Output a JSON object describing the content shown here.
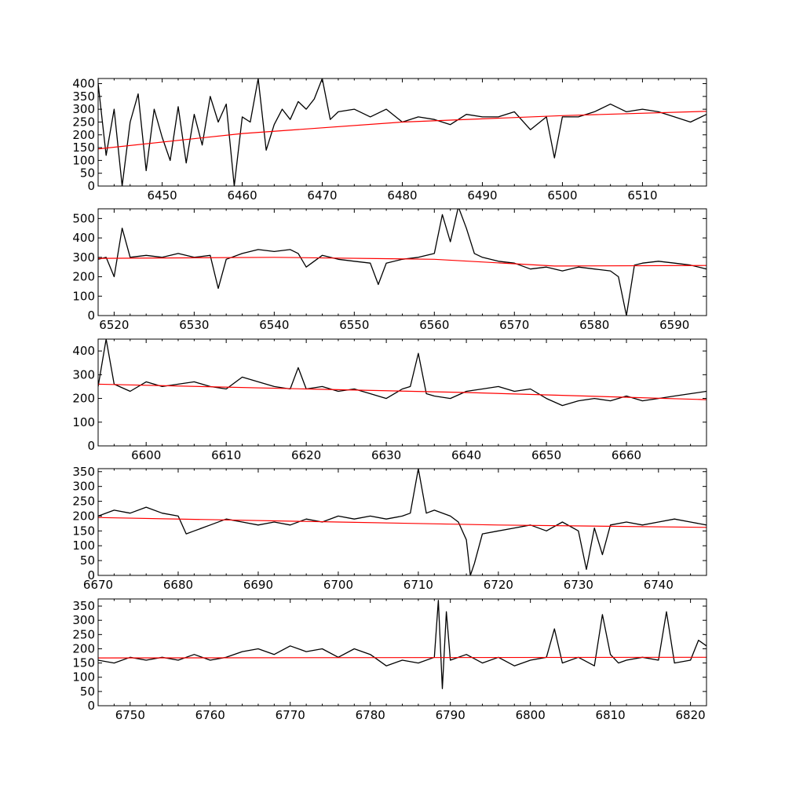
{
  "colors": {
    "spectrum": "#000000",
    "continuum": "#ff0000",
    "background": "#ffffff"
  },
  "chart_data": [
    {
      "type": "line",
      "xlim": [
        6442,
        6518
      ],
      "ylim": [
        0,
        420
      ],
      "xticks": [
        6450,
        6460,
        6470,
        6480,
        6490,
        6500,
        6510
      ],
      "yticks": [
        0,
        50,
        100,
        150,
        200,
        250,
        300,
        350,
        400
      ],
      "spectrum": {
        "x": [
          6442,
          6443,
          6444,
          6445,
          6446,
          6447,
          6448,
          6449,
          6450,
          6451,
          6452,
          6453,
          6454,
          6455,
          6456,
          6457,
          6458,
          6459,
          6460,
          6461,
          6462,
          6463,
          6464,
          6465,
          6466,
          6467,
          6468,
          6469,
          6470,
          6471,
          6472,
          6474,
          6476,
          6478,
          6480,
          6482,
          6484,
          6486,
          6488,
          6490,
          6492,
          6494,
          6496,
          6498,
          6499,
          6500,
          6502,
          6504,
          6506,
          6508,
          6510,
          6512,
          6514,
          6516,
          6518
        ],
        "y": [
          400,
          120,
          300,
          0,
          250,
          360,
          60,
          300,
          190,
          100,
          310,
          90,
          280,
          160,
          350,
          250,
          320,
          0,
          270,
          250,
          420,
          140,
          240,
          300,
          260,
          330,
          300,
          340,
          420,
          260,
          290,
          300,
          270,
          300,
          250,
          270,
          260,
          240,
          280,
          270,
          270,
          290,
          220,
          270,
          110,
          270,
          270,
          290,
          320,
          290,
          300,
          290,
          270,
          250,
          280
        ]
      },
      "continuum": {
        "x": [
          6442,
          6460,
          6480,
          6500,
          6518
        ],
        "y": [
          145,
          205,
          250,
          275,
          292
        ]
      }
    },
    {
      "type": "line",
      "xlim": [
        6518,
        6594
      ],
      "ylim": [
        0,
        550
      ],
      "xticks": [
        6520,
        6530,
        6540,
        6550,
        6560,
        6570,
        6580,
        6590
      ],
      "yticks": [
        0,
        100,
        200,
        300,
        400,
        500
      ],
      "spectrum": {
        "x": [
          6518,
          6519,
          6520,
          6521,
          6522,
          6524,
          6526,
          6528,
          6530,
          6532,
          6533,
          6534,
          6536,
          6538,
          6540,
          6542,
          6543,
          6544,
          6546,
          6548,
          6550,
          6552,
          6553,
          6554,
          6556,
          6558,
          6560,
          6561,
          6562,
          6563,
          6564,
          6565,
          6566,
          6568,
          6570,
          6572,
          6574,
          6576,
          6578,
          6580,
          6582,
          6583,
          6584,
          6585,
          6586,
          6588,
          6590,
          6592,
          6594
        ],
        "y": [
          290,
          300,
          200,
          450,
          300,
          310,
          300,
          320,
          300,
          310,
          140,
          290,
          320,
          340,
          330,
          340,
          320,
          250,
          310,
          290,
          280,
          270,
          160,
          270,
          290,
          300,
          320,
          520,
          380,
          560,
          450,
          320,
          300,
          280,
          270,
          240,
          250,
          230,
          250,
          240,
          230,
          200,
          0,
          260,
          270,
          280,
          270,
          260,
          240
        ]
      },
      "continuum": {
        "x": [
          6518,
          6540,
          6560,
          6575,
          6594
        ],
        "y": [
          295,
          300,
          290,
          255,
          258
        ]
      }
    },
    {
      "type": "line",
      "xlim": [
        6594,
        6670
      ],
      "ylim": [
        0,
        450
      ],
      "xticks": [
        6600,
        6610,
        6620,
        6630,
        6640,
        6650,
        6660
      ],
      "yticks": [
        0,
        100,
        200,
        300,
        400
      ],
      "spectrum": {
        "x": [
          6594,
          6595,
          6596,
          6598,
          6600,
          6602,
          6604,
          6606,
          6608,
          6610,
          6612,
          6614,
          6616,
          6618,
          6619,
          6620,
          6622,
          6624,
          6626,
          6628,
          6630,
          6632,
          6633,
          6634,
          6635,
          6636,
          6638,
          6640,
          6642,
          6644,
          6646,
          6648,
          6650,
          6652,
          6654,
          6656,
          6658,
          6660,
          6662,
          6664,
          6666,
          6668,
          6670
        ],
        "y": [
          250,
          450,
          260,
          230,
          270,
          250,
          260,
          270,
          250,
          240,
          290,
          270,
          250,
          240,
          330,
          240,
          250,
          230,
          240,
          220,
          200,
          240,
          250,
          390,
          220,
          210,
          200,
          230,
          240,
          250,
          230,
          240,
          200,
          170,
          190,
          200,
          190,
          210,
          190,
          200,
          210,
          220,
          230
        ]
      },
      "continuum": {
        "x": [
          6594,
          6620,
          6640,
          6670
        ],
        "y": [
          260,
          240,
          225,
          195
        ]
      }
    },
    {
      "type": "line",
      "xlim": [
        6670,
        6746
      ],
      "ylim": [
        0,
        360
      ],
      "xticks": [
        6670,
        6680,
        6690,
        6700,
        6710,
        6720,
        6730,
        6740
      ],
      "yticks": [
        0,
        50,
        100,
        150,
        200,
        250,
        300,
        350
      ],
      "spectrum": {
        "x": [
          6670,
          6672,
          6674,
          6676,
          6678,
          6680,
          6681,
          6682,
          6684,
          6686,
          6688,
          6690,
          6692,
          6694,
          6696,
          6698,
          6700,
          6702,
          6704,
          6706,
          6708,
          6709,
          6710,
          6711,
          6712,
          6714,
          6715,
          6716,
          6716.5,
          6717,
          6718,
          6720,
          6722,
          6724,
          6726,
          6728,
          6730,
          6731,
          6732,
          6733,
          6734,
          6736,
          6738,
          6740,
          6742,
          6744,
          6746
        ],
        "y": [
          200,
          220,
          210,
          230,
          210,
          200,
          140,
          150,
          170,
          190,
          180,
          170,
          180,
          170,
          190,
          180,
          200,
          190,
          200,
          190,
          200,
          210,
          360,
          210,
          220,
          200,
          180,
          120,
          0,
          40,
          140,
          150,
          160,
          170,
          150,
          180,
          150,
          20,
          160,
          70,
          170,
          180,
          170,
          180,
          190,
          180,
          170
        ]
      },
      "continuum": {
        "x": [
          6670,
          6700,
          6720,
          6746
        ],
        "y": [
          195,
          180,
          170,
          162
        ]
      }
    },
    {
      "type": "line",
      "xlim": [
        6746,
        6822
      ],
      "ylim": [
        0,
        375
      ],
      "xticks": [
        6750,
        6760,
        6770,
        6780,
        6790,
        6800,
        6810,
        6820
      ],
      "yticks": [
        0,
        50,
        100,
        150,
        200,
        250,
        300,
        350
      ],
      "spectrum": {
        "x": [
          6746,
          6748,
          6750,
          6752,
          6754,
          6756,
          6758,
          6760,
          6762,
          6764,
          6766,
          6768,
          6770,
          6772,
          6774,
          6776,
          6778,
          6780,
          6782,
          6784,
          6786,
          6788,
          6788.5,
          6789,
          6789.5,
          6790,
          6792,
          6794,
          6796,
          6798,
          6800,
          6802,
          6803,
          6804,
          6806,
          6808,
          6809,
          6810,
          6811,
          6812,
          6814,
          6816,
          6817,
          6818,
          6820,
          6821,
          6822
        ],
        "y": [
          160,
          150,
          170,
          160,
          170,
          160,
          180,
          160,
          170,
          190,
          200,
          180,
          210,
          190,
          200,
          170,
          200,
          180,
          140,
          160,
          150,
          170,
          370,
          60,
          330,
          160,
          180,
          150,
          170,
          140,
          160,
          170,
          270,
          150,
          170,
          140,
          320,
          180,
          150,
          160,
          170,
          160,
          330,
          150,
          160,
          230,
          210
        ]
      },
      "continuum": {
        "x": [
          6746,
          6822
        ],
        "y": [
          168,
          170
        ]
      }
    }
  ]
}
